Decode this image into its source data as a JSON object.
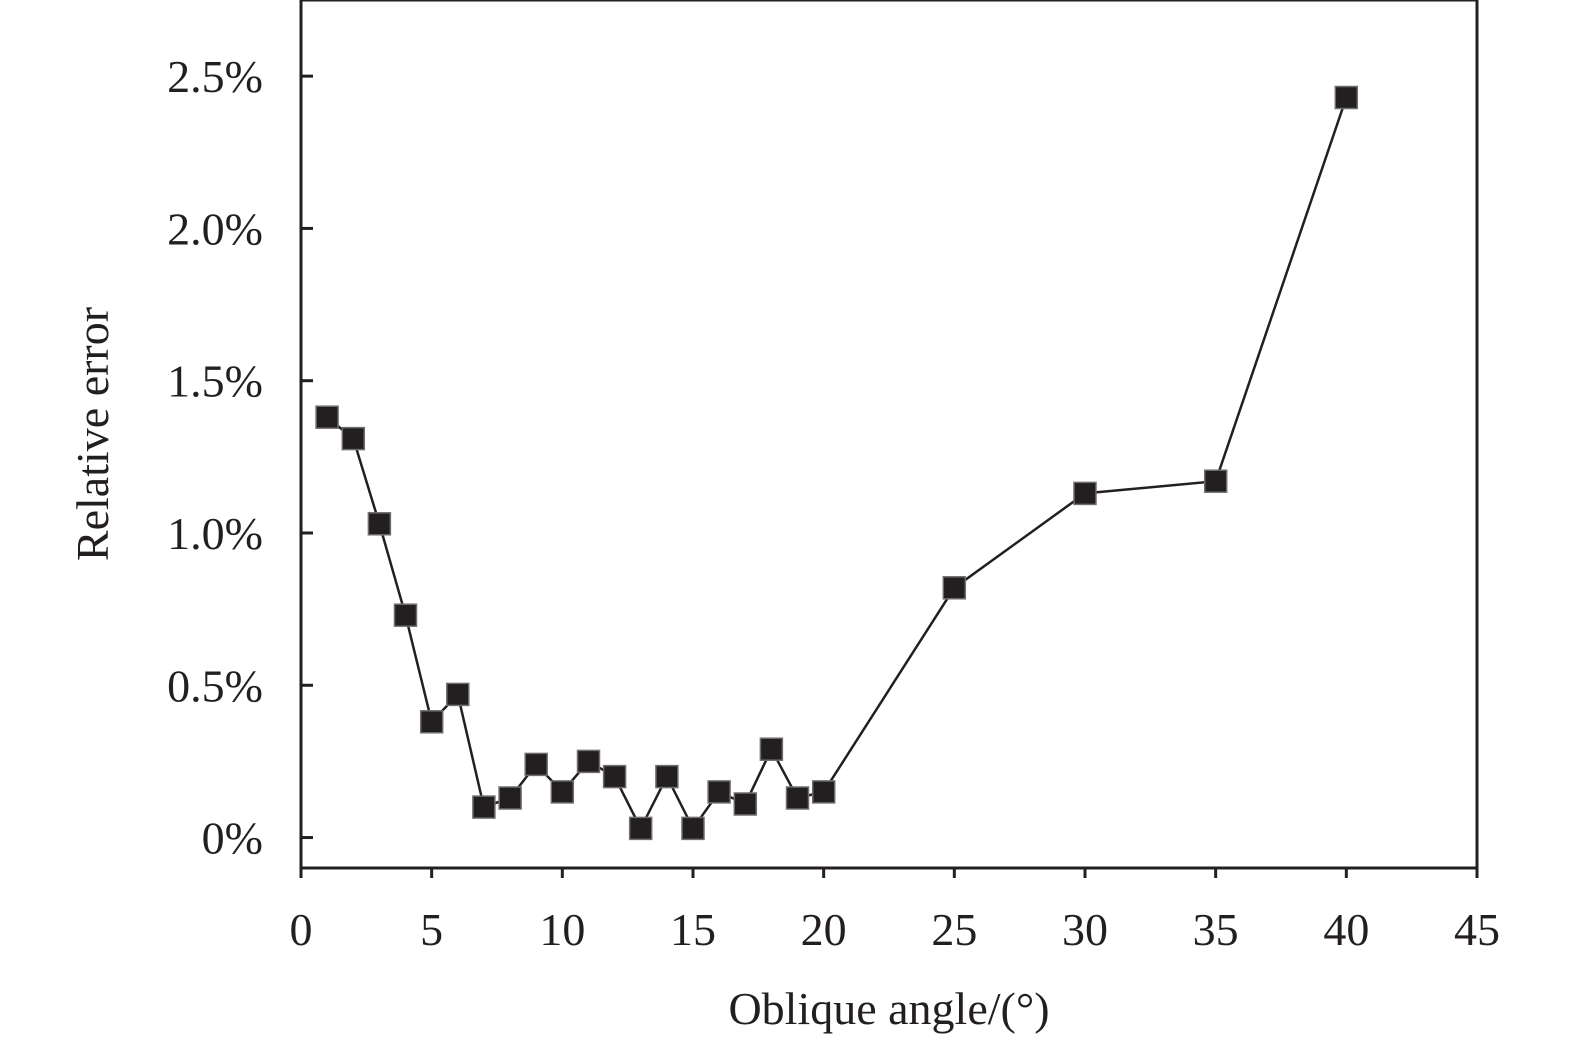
{
  "chart_data": {
    "type": "line",
    "title": "",
    "xlabel": "Oblique angle/(°)",
    "ylabel": "Relative error",
    "xlim": [
      0,
      45
    ],
    "ylim": [
      -0.001,
      0.0275
    ],
    "x_ticks": [
      0,
      5,
      10,
      15,
      20,
      25,
      30,
      35,
      40,
      45
    ],
    "x_tick_labels": [
      "0",
      "5",
      "10",
      "15",
      "20",
      "25",
      "30",
      "35",
      "40",
      "45"
    ],
    "y_ticks": [
      0,
      0.005,
      0.01,
      0.015,
      0.02,
      0.025
    ],
    "y_tick_labels": [
      "0%",
      "0.5%",
      "1.0%",
      "1.5%",
      "2.0%",
      "2.5%"
    ],
    "grid": false,
    "legend": "none",
    "series": [
      {
        "marker": "square",
        "color": "#231f20",
        "x": [
          1,
          2,
          3,
          4,
          5,
          6,
          7,
          8,
          9,
          10,
          11,
          12,
          13,
          14,
          15,
          16,
          17,
          18,
          19,
          20,
          25,
          30,
          35,
          40
        ],
        "y": [
          0.0138,
          0.0131,
          0.0103,
          0.0073,
          0.0038,
          0.0047,
          0.001,
          0.0013,
          0.0024,
          0.0015,
          0.0025,
          0.002,
          0.0003,
          0.002,
          0.0003,
          0.0015,
          0.0011,
          0.0029,
          0.0013,
          0.0015,
          0.0082,
          0.0113,
          0.0117,
          0.0243
        ]
      }
    ]
  }
}
